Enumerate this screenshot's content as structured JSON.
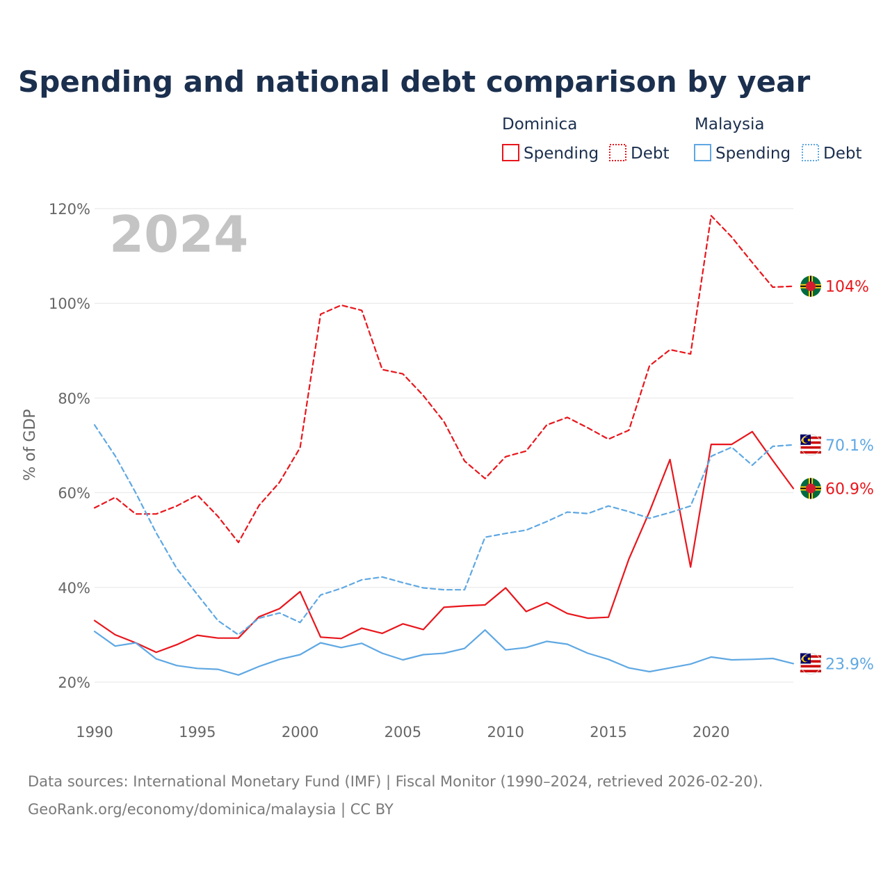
{
  "title": "Spending and national debt comparison by year",
  "year_watermark": "2024",
  "source_line1": "Data sources: International Monetary Fund (IMF) | Fiscal Monitor (1990–2024, retrieved 2026-02-20).",
  "source_line2": "GeoRank.org/economy/dominica/malaysia | CC BY",
  "colors": {
    "dominica": "#e8161c",
    "malaysia": "#5fa8e3",
    "title": "#1b2f4e",
    "grid": "#e6e6e6",
    "tick": "#666666"
  },
  "legend": {
    "dominica": {
      "group": "Dominica",
      "spending": "Spending",
      "debt": "Debt"
    },
    "malaysia": {
      "group": "Malaysia",
      "spending": "Spending",
      "debt": "Debt"
    }
  },
  "chart_data": {
    "type": "line",
    "title": "Spending and national debt comparison by year",
    "xlabel": "",
    "ylabel": "% of GDP",
    "xlim": [
      1990,
      2024
    ],
    "ylim": [
      15,
      125
    ],
    "x_ticks": [
      1990,
      1995,
      2000,
      2005,
      2010,
      2015,
      2020
    ],
    "y_ticks": [
      20,
      40,
      60,
      80,
      100,
      120
    ],
    "x_tick_labels": [
      "1990",
      "1995",
      "2000",
      "2005",
      "2010",
      "2015",
      "2020"
    ],
    "y_tick_labels": [
      "20%",
      "40%",
      "60%",
      "80%",
      "100%",
      "120%"
    ],
    "grid": true,
    "legend_position": "top-right",
    "x": [
      1990,
      1991,
      1992,
      1993,
      1994,
      1995,
      1996,
      1997,
      1998,
      1999,
      2000,
      2001,
      2002,
      2003,
      2004,
      2005,
      2006,
      2007,
      2008,
      2009,
      2010,
      2011,
      2012,
      2013,
      2014,
      2015,
      2016,
      2017,
      2018,
      2019,
      2020,
      2021,
      2022,
      2023,
      2024
    ],
    "series": [
      {
        "name": "Dominica Debt",
        "country": "dominica",
        "style": "dashed",
        "end_label": "104%",
        "values": [
          56.8,
          59,
          55.5,
          55.5,
          57.2,
          59.5,
          55,
          49.5,
          57.3,
          62.2,
          69.5,
          97.7,
          99.6,
          98.5,
          86,
          85.1,
          80.5,
          75,
          66.7,
          63,
          67.6,
          68.8,
          74.3,
          75.9,
          73.7,
          71.3,
          73.2,
          86.8,
          90.2,
          89.3,
          118.5,
          114,
          108.6,
          103.4,
          103.6
        ]
      },
      {
        "name": "Dominica Spending",
        "country": "dominica",
        "style": "solid",
        "end_label": "60.9%",
        "values": [
          33,
          30,
          28.3,
          26.3,
          27.9,
          29.9,
          29.3,
          29.3,
          33.8,
          35.5,
          39.1,
          29.5,
          29.2,
          31.4,
          30.3,
          32.3,
          31.1,
          35.8,
          36.1,
          36.3,
          39.9,
          34.9,
          36.8,
          34.5,
          33.5,
          33.7,
          46,
          56,
          67,
          44.3,
          70.2,
          70.2,
          72.9,
          66.8,
          60.9
        ]
      },
      {
        "name": "Malaysia Debt",
        "country": "malaysia",
        "style": "dashed",
        "end_label": "70.1%",
        "values": [
          74.3,
          67.8,
          60,
          51.5,
          44,
          38.5,
          33,
          30,
          33.5,
          34.6,
          32.6,
          38.4,
          39.8,
          41.6,
          42.2,
          41,
          39.9,
          39.5,
          39.5,
          50.6,
          51.4,
          52.1,
          53.9,
          55.9,
          55.6,
          57.2,
          56,
          54.6,
          55.8,
          57.2,
          67.7,
          69.6,
          65.8,
          69.8,
          70.1
        ]
      },
      {
        "name": "Malaysia Spending",
        "country": "malaysia",
        "style": "solid",
        "end_label": "23.9%",
        "values": [
          30.7,
          27.6,
          28.3,
          24.9,
          23.5,
          22.9,
          22.7,
          21.5,
          23.3,
          24.8,
          25.8,
          28.3,
          27.3,
          28.2,
          26.1,
          24.7,
          25.8,
          26.1,
          27.1,
          31,
          26.8,
          27.3,
          28.6,
          28,
          26.1,
          24.8,
          23,
          22.2,
          23,
          23.8,
          25.3,
          24.7,
          24.8,
          25,
          23.9
        ]
      }
    ]
  }
}
